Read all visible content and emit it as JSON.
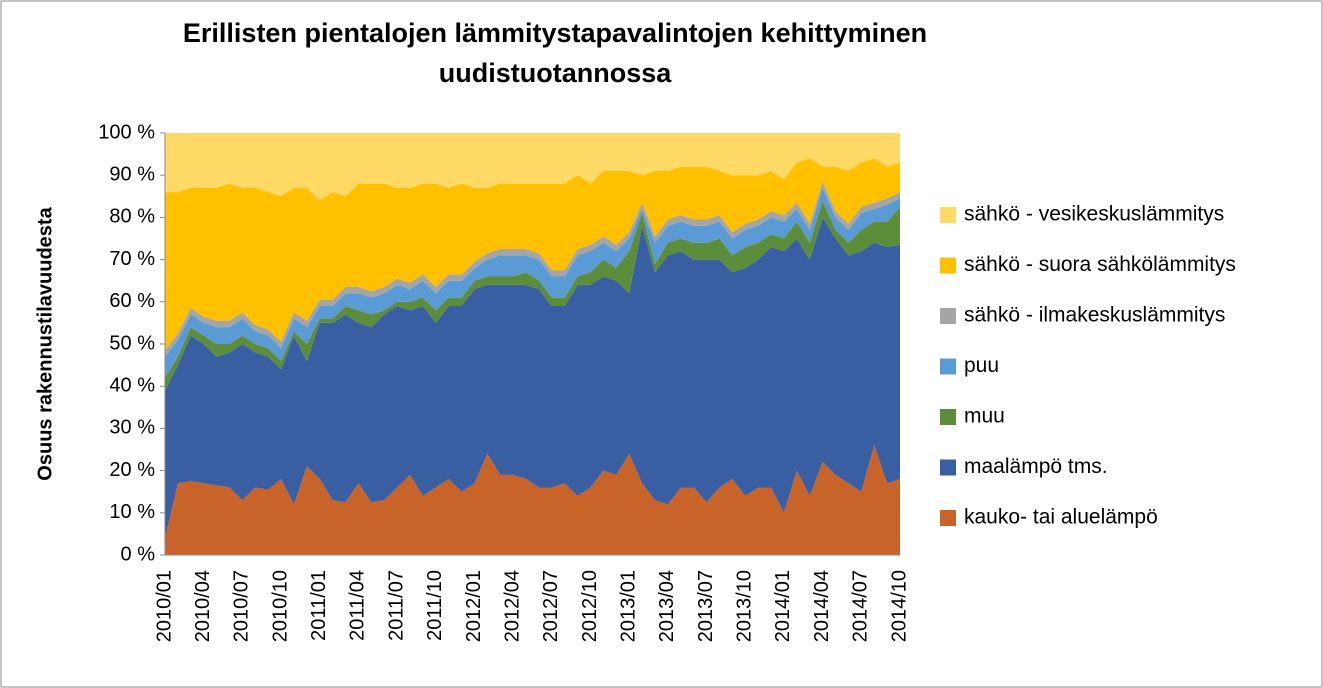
{
  "chart_data": {
    "type": "stacked_area",
    "title": "Erillisten pientalojen lämmitystapavalintojen kehittyminen uudistuotannossa",
    "y_label": "Osuus rakennustilavuudesta",
    "legend": "right",
    "categories": [
      "2010/01",
      null,
      null,
      "2010/04",
      null,
      null,
      "2010/07",
      null,
      null,
      "2010/10",
      null,
      null,
      "2011/01",
      null,
      null,
      "2011/04",
      null,
      null,
      "2011/07",
      null,
      null,
      "2011/10",
      null,
      null,
      "2012/01",
      null,
      null,
      "2012/04",
      null,
      null,
      "2012/07",
      null,
      null,
      "2012/10",
      null,
      null,
      "2013/01",
      null,
      null,
      "2013/04",
      null,
      null,
      "2013/07",
      null,
      null,
      "2013/10",
      null,
      null,
      "2014/01",
      null,
      null,
      "2014/04",
      null,
      null,
      "2014/07",
      null,
      null,
      "2014/10"
    ],
    "ylim": [
      0,
      100
    ],
    "yticks": [
      {
        "value": 0,
        "label": "0 %"
      },
      {
        "value": 10,
        "label": "10 %"
      },
      {
        "value": 20,
        "label": "20 %"
      },
      {
        "value": 30,
        "label": "30 %"
      },
      {
        "value": 40,
        "label": "40 %"
      },
      {
        "value": 50,
        "label": "50 %"
      },
      {
        "value": 60,
        "label": "60 %"
      },
      {
        "value": 70,
        "label": "70 %"
      },
      {
        "value": 80,
        "label": "80 %"
      },
      {
        "value": 90,
        "label": "90 %"
      },
      {
        "value": 100,
        "label": "100 %"
      }
    ],
    "series": [
      {
        "name": "kauko- tai aluelämpö",
        "color": "#c8642a",
        "values": [
          4,
          17,
          17.5,
          17,
          16.5,
          16,
          13,
          16,
          15.5,
          18,
          12,
          21,
          18,
          13,
          12.5,
          17,
          12.5,
          13,
          16,
          19,
          14,
          16,
          18,
          15,
          17,
          24,
          19,
          19,
          18,
          16,
          16,
          17,
          14,
          16,
          20,
          19,
          24,
          17,
          13,
          12,
          16,
          16,
          12.5,
          16,
          18,
          14,
          16,
          16,
          10,
          20,
          14,
          22,
          19,
          17,
          15,
          26,
          17,
          18
        ]
      },
      {
        "name": "maalämpö tms.",
        "color": "#3a5ea2",
        "values": [
          35,
          28,
          34.5,
          33,
          30.5,
          32,
          37,
          32,
          31.5,
          26,
          40,
          25,
          37,
          42,
          44.5,
          38,
          41.5,
          44,
          43,
          39,
          45,
          39,
          41,
          44,
          46,
          40,
          45,
          45,
          46,
          47,
          43,
          42,
          50,
          48,
          46,
          46,
          38,
          61,
          54,
          59,
          56,
          54,
          57.5,
          54,
          49,
          54,
          54,
          57,
          62,
          55,
          56,
          58,
          56,
          54,
          57,
          48,
          56,
          55.5
        ]
      },
      {
        "name": "muu",
        "color": "#5b8d3b",
        "values": [
          3,
          2,
          2,
          2,
          3,
          2,
          2,
          2,
          2,
          2,
          1,
          4,
          1,
          1,
          2,
          3,
          3,
          1,
          1,
          2,
          2,
          3,
          2,
          2,
          2,
          2,
          2,
          2,
          3,
          2,
          2,
          2,
          2,
          3,
          4,
          3,
          10,
          3,
          2,
          3,
          3,
          4,
          4,
          5,
          4,
          5,
          4,
          3,
          3,
          4,
          4,
          4,
          2,
          3,
          5,
          5,
          6,
          9
        ]
      },
      {
        "name": "puu",
        "color": "#5b9bd5",
        "values": [
          5,
          4,
          3,
          3,
          4,
          4,
          4,
          3,
          3,
          3,
          3,
          4,
          3,
          3,
          3,
          4,
          4,
          4,
          4,
          3,
          4,
          4,
          4,
          4,
          3,
          4,
          5,
          5,
          4,
          5,
          5,
          5,
          5,
          5,
          4,
          4,
          3,
          1,
          5,
          4,
          4,
          4,
          4,
          4,
          4,
          4,
          4,
          4,
          4,
          3,
          3,
          3,
          3,
          3,
          4,
          3,
          4,
          2
        ]
      },
      {
        "name": "sähkö - ilmakeskuslämmitys",
        "color": "#a5a5a5",
        "values": [
          1.5,
          1.5,
          1.5,
          1.5,
          1.5,
          1.5,
          1.5,
          1.5,
          1.5,
          1.5,
          1.5,
          1.5,
          1.5,
          1.5,
          1.5,
          1.5,
          1.5,
          1.5,
          1.5,
          1.5,
          1.5,
          1.5,
          1.5,
          1.5,
          1.5,
          1.5,
          1.5,
          1.5,
          1.5,
          1.5,
          1.5,
          1.5,
          1.5,
          1.5,
          1.5,
          1.5,
          1.5,
          1.5,
          1.5,
          1.5,
          1.5,
          1.5,
          1.5,
          1.5,
          1.5,
          1.5,
          1.5,
          1.5,
          1.5,
          1.5,
          1.5,
          1.5,
          1.5,
          1.5,
          1.5,
          1.5,
          1.5,
          1.5
        ]
      },
      {
        "name": "sähkö - suora sähkölämmitys",
        "color": "#ffc000",
        "values": [
          37.5,
          33.5,
          28.5,
          30.5,
          31.5,
          32.5,
          29.5,
          32.5,
          32.5,
          34.5,
          29.5,
          31.5,
          23.5,
          25.5,
          21.5,
          24.5,
          25.5,
          24.5,
          21.5,
          22.5,
          21.5,
          24.5,
          20.5,
          21.5,
          17.5,
          15.5,
          15.5,
          15.5,
          15.5,
          16.5,
          20.5,
          20.5,
          17.5,
          14.5,
          15.5,
          17.5,
          14.5,
          6.5,
          15.5,
          11.5,
          11.5,
          12.5,
          12.5,
          10.5,
          13.5,
          11.5,
          10.5,
          9.5,
          8.5,
          9.5,
          15.5,
          3.5,
          10.5,
          12.5,
          10.5,
          10.5,
          7.5,
          7
        ]
      },
      {
        "name": "sähkö - vesikeskuslämmitys",
        "color": "#ffd966",
        "values": [
          14,
          14,
          13,
          13,
          13,
          12,
          13,
          13,
          14,
          15,
          13,
          13,
          16,
          14,
          15,
          12,
          12,
          12,
          13,
          13,
          12,
          12,
          13,
          12,
          13,
          13,
          12,
          12,
          12,
          12,
          12,
          12,
          10,
          12,
          9,
          9,
          9,
          10,
          9,
          9,
          8,
          8,
          8,
          9,
          10,
          10,
          10,
          9,
          11,
          7,
          6,
          8,
          8,
          9,
          7,
          6,
          8,
          7
        ]
      }
    ]
  }
}
